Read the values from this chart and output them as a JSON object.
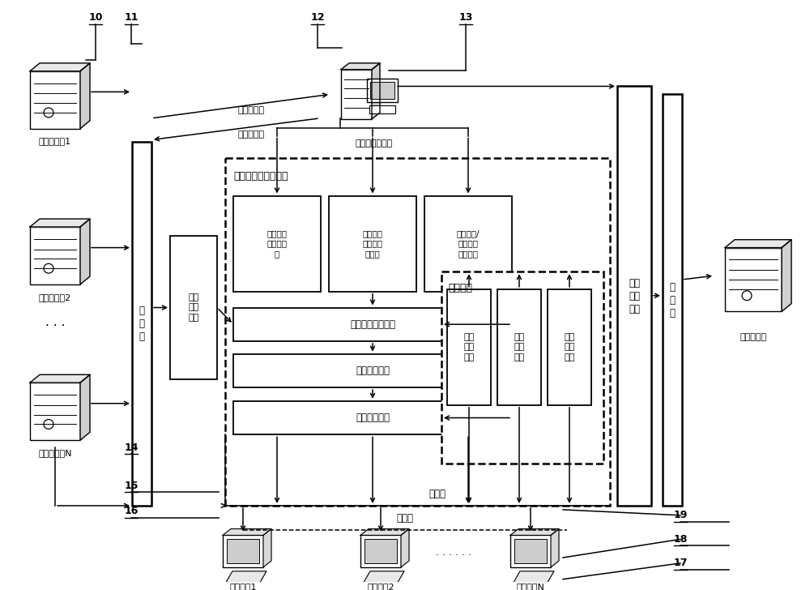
{
  "bg": "#ffffff",
  "servers_left": [
    "数据服务器1",
    "数据服务器2",
    "数据服务器N"
  ],
  "eth_left_label": "以\n太\n网",
  "data_parse": "数据\n解析\n模块",
  "app_server_label": "应用程序服务器",
  "state_diag_label": "状态监测与故障诊断",
  "mod1": "伺服阀差\n值分析模\n块",
  "mod2": "电气传感\n器振荡分\n析模块",
  "mod3": "旋转部件/\n振动信号\n分析模块",
  "info_proc": "信息综合处理模块",
  "fault_alarm": "故障报警模块",
  "monitor_view": "监控视图模块",
  "data_mgmt": "数据管理",
  "ch_mgmt": "通道\n管理\n模块",
  "std_mgmt": "标准\n管理\n模块",
  "fault_fb": "故障\n反馈\n模块",
  "report_mod": "报表\n报送\n模块",
  "eth_right_label": "以\n太\n网",
  "mgmt_srv_label": "管理服务器",
  "eth_bot1": "以太网",
  "eth_bot2": "以太网",
  "terminals": [
    "电脑终端1",
    "电脑终端2",
    "电脑终端N"
  ],
  "parsed_data": "已解析数据",
  "pending_ch": "待解析通道",
  "nums": [
    "10",
    "11",
    "12",
    "13",
    "14",
    "15",
    "16",
    "17",
    "18",
    "19"
  ]
}
